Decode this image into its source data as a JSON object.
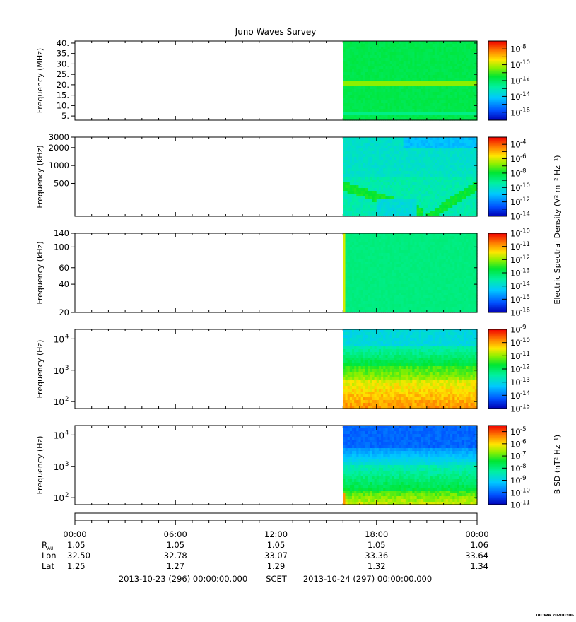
{
  "chart_data": {
    "type": "heatmap",
    "title": "Juno Waves Survey",
    "footer_code": "UIOWA 20200306",
    "time_axis": {
      "tick_labels": [
        "00:00",
        "06:00",
        "12:00",
        "18:00",
        "00:00"
      ],
      "tick_hours": [
        0,
        6,
        12,
        18,
        24
      ],
      "range_hours": [
        0,
        24
      ],
      "data_start_hour": 16,
      "ephemeris": [
        {
          "label": "R",
          "sub": "AU",
          "values": [
            "1.05",
            "1.05",
            "1.05",
            "1.05",
            "1.06"
          ]
        },
        {
          "label": "Lon",
          "sub": "",
          "values": [
            "32.50",
            "32.78",
            "33.07",
            "33.36",
            "33.64"
          ]
        },
        {
          "label": "Lat",
          "sub": "",
          "values": [
            "1.25",
            "1.27",
            "1.29",
            "1.32",
            "1.34"
          ]
        }
      ],
      "start_label": "2013-10-23 (296) 00:00:00.000",
      "mid_label": "SCET",
      "end_label": "2013-10-24 (297) 00:00:00.000"
    },
    "panels": [
      {
        "id": "hfr-high",
        "ylabel": "Frequency (MHz)",
        "scale": "linear",
        "ylim": [
          3,
          41
        ],
        "ticks": [
          5,
          10,
          15,
          20,
          25,
          30,
          35,
          40
        ],
        "tick_labels": [
          "5.",
          "10.",
          "15.",
          "20.",
          "25.",
          "30.",
          "35.",
          "40."
        ],
        "colorbar": {
          "exps": [
            "-8",
            "-10",
            "-12",
            "-14",
            "-16"
          ],
          "exp_values": [
            -8,
            -10,
            -12,
            -14,
            -16
          ],
          "range": [
            -17,
            -7
          ]
        },
        "pattern": "hfrhigh"
      },
      {
        "id": "hfr-low",
        "ylabel": "Frequency (kHz)",
        "scale": "log",
        "ylim": [
          140,
          3000
        ],
        "ticks": [
          500,
          1000,
          2000,
          3000
        ],
        "tick_labels": [
          "500",
          "1000",
          "2000",
          "3000"
        ],
        "colorbar": {
          "exps": [
            "-4",
            "-6",
            "-8",
            "-10",
            "-12",
            "-14"
          ],
          "exp_values": [
            -4,
            -6,
            -8,
            -10,
            -12,
            -14
          ],
          "range": [
            -14,
            -3
          ]
        },
        "pattern": "hfrlow"
      },
      {
        "id": "lfr-high",
        "ylabel": "Frequency (kHz)",
        "scale": "log",
        "ylim": [
          20,
          140
        ],
        "ticks": [
          20,
          40,
          60,
          100,
          140
        ],
        "tick_labels": [
          "20",
          "40",
          "60",
          "100",
          "140"
        ],
        "colorbar": {
          "exps": [
            "-10",
            "-11",
            "-12",
            "-13",
            "-14",
            "-15",
            "-16"
          ],
          "exp_values": [
            -10,
            -11,
            -12,
            -13,
            -14,
            -15,
            -16
          ],
          "range": [
            -16,
            -10
          ]
        },
        "pattern": "lfrhigh"
      },
      {
        "id": "lfr-low",
        "ylabel": "Frequency (Hz)",
        "scale": "log",
        "ylim": [
          60,
          20000
        ],
        "ticks": [
          100,
          1000,
          10000
        ],
        "tick_exps": [
          "2",
          "3",
          "4"
        ],
        "colorbar": {
          "exps": [
            "-9",
            "-10",
            "-11",
            "-12",
            "-13",
            "-14",
            "-15"
          ],
          "exp_values": [
            -9,
            -10,
            -11,
            -12,
            -13,
            -14,
            -15
          ],
          "range": [
            -15,
            -9
          ]
        },
        "pattern": "lfrlow"
      },
      {
        "id": "mag",
        "ylabel": "Frequency (Hz)",
        "scale": "log",
        "ylim": [
          60,
          20000
        ],
        "ticks": [
          100,
          1000,
          10000
        ],
        "tick_exps": [
          "2",
          "3",
          "4"
        ],
        "colorbar": {
          "exps": [
            "-5",
            "-6",
            "-7",
            "-8",
            "-9",
            "-10",
            "-11"
          ],
          "exp_values": [
            -5,
            -6,
            -7,
            -8,
            -9,
            -10,
            -11
          ],
          "range": [
            -11,
            -4.5
          ]
        },
        "pattern": "mag"
      }
    ],
    "colorbar_titles": {
      "electric": "Electric Spectral Density (V² m⁻² Hz⁻¹)",
      "magnetic": "B SD (nT² Hz⁻¹)"
    }
  }
}
